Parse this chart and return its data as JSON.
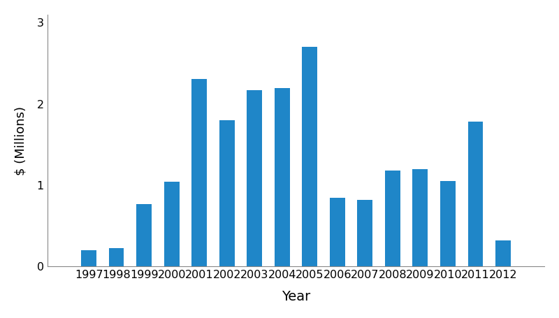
{
  "years": [
    1997,
    1998,
    1999,
    2000,
    2001,
    2002,
    2003,
    2004,
    2005,
    2006,
    2007,
    2008,
    2009,
    2010,
    2011,
    2012
  ],
  "values": [
    0.2,
    0.23,
    0.77,
    1.04,
    2.31,
    1.8,
    2.17,
    2.2,
    2.7,
    0.85,
    0.82,
    1.18,
    1.2,
    1.05,
    1.78,
    0.32
  ],
  "bar_color": "#1f86c8",
  "xlabel": "Year",
  "ylabel": "$ (Millions)",
  "ylim": [
    0,
    3.1
  ],
  "xlim": [
    1995.5,
    2013.5
  ],
  "yticks": [
    0,
    1,
    2,
    3
  ],
  "bar_width": 0.55,
  "background_color": "#ffffff",
  "xlabel_fontsize": 14,
  "ylabel_fontsize": 13,
  "tick_fontsize": 11.5
}
